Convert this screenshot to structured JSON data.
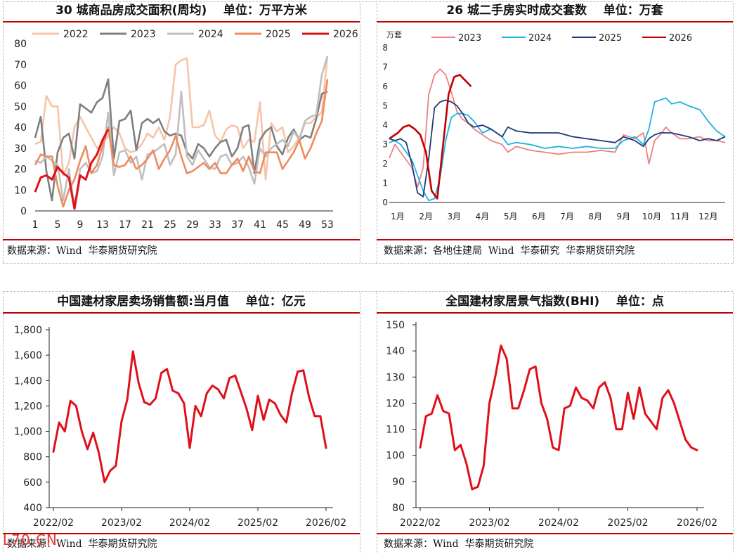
{
  "panels": [
    {
      "title": "30 城商品房成交面积(周均)    单位：万平方米",
      "source": "数据来源：Wind  华泰期货研究院"
    },
    {
      "title": "26 城二手房实时成交套数    单位：万套",
      "source": "数据来源：各地住建局  Wind  华泰研究  华泰期货研究院"
    },
    {
      "title": "中国建材家居卖场销售额:当月值    单位：亿元",
      "source": "数据来源：Wind  华泰期货研究院"
    },
    {
      "title": "全国建材家居景气指数(BHI)    单位：点",
      "source": "数据来源：Wind  华泰期货研究院"
    }
  ],
  "watermark": "L70.CN",
  "chart_data": [
    {
      "type": "line",
      "title": "30 城商品房成交面积(周均)",
      "unit": "万平方米",
      "xticks": [
        "1",
        "5",
        "9",
        "13",
        "17",
        "21",
        "25",
        "29",
        "33",
        "37",
        "41",
        "45",
        "49",
        "53"
      ],
      "ylim": [
        0,
        80
      ],
      "yticks": [
        0,
        10,
        20,
        30,
        40,
        50,
        60,
        70,
        80
      ],
      "legend_position": "top",
      "series": [
        {
          "name": "2022",
          "color": "#f7c4a8",
          "x": [
            1,
            2,
            3,
            4,
            5,
            6,
            7,
            8,
            9,
            10,
            11,
            12,
            13,
            14,
            15,
            16,
            17,
            18,
            19,
            20,
            21,
            22,
            23,
            24,
            25,
            26,
            27,
            28,
            29,
            30,
            31,
            32,
            33,
            34,
            35,
            36,
            37,
            38,
            39,
            40,
            41,
            42,
            43,
            44,
            45,
            46,
            47,
            48,
            49,
            50,
            51,
            52,
            53
          ],
          "y": [
            32,
            33,
            55,
            50,
            50,
            17,
            23,
            40,
            45,
            40,
            35,
            30,
            32,
            36,
            40,
            37,
            30,
            28,
            29,
            32,
            37,
            35,
            40,
            34,
            45,
            70,
            72,
            73,
            40,
            40,
            41,
            48,
            36,
            33,
            39,
            41,
            40,
            30,
            34,
            33,
            52,
            15,
            42,
            38,
            40,
            28,
            31,
            35,
            42,
            42,
            45,
            47,
            74
          ]
        },
        {
          "name": "2023",
          "color": "#7f7f7f",
          "x": [
            1,
            2,
            3,
            4,
            5,
            6,
            7,
            8,
            9,
            10,
            11,
            12,
            13,
            14,
            15,
            16,
            17,
            18,
            19,
            20,
            21,
            22,
            23,
            24,
            25,
            26,
            27,
            28,
            29,
            30,
            31,
            32,
            33,
            34,
            35,
            36,
            37,
            38,
            39,
            40,
            41,
            42,
            43,
            44,
            45,
            46,
            47,
            48,
            49,
            50,
            51,
            52,
            53
          ],
          "y": [
            35,
            45,
            19,
            5,
            28,
            35,
            37,
            25,
            51,
            49,
            47,
            52,
            54,
            63,
            25,
            43,
            44,
            48,
            29,
            42,
            44,
            42,
            44,
            38,
            36,
            37,
            36,
            28,
            25,
            32,
            30,
            26,
            30,
            33,
            34,
            26,
            30,
            40,
            41,
            18,
            34,
            38,
            40,
            31,
            27,
            35,
            39,
            34,
            36,
            35,
            44,
            56,
            57
          ]
        },
        {
          "name": "2024",
          "color": "#bfbfbf",
          "x": [
            1,
            2,
            3,
            4,
            5,
            6,
            7,
            8,
            9,
            10,
            11,
            12,
            13,
            14,
            15,
            16,
            17,
            18,
            19,
            20,
            21,
            22,
            23,
            24,
            25,
            26,
            27,
            28,
            29,
            30,
            31,
            32,
            33,
            34,
            35,
            36,
            37,
            38,
            39,
            40,
            41,
            42,
            43,
            44,
            45,
            46,
            47,
            48,
            49,
            50,
            51,
            52,
            53
          ],
          "y": [
            24,
            23,
            26,
            24,
            22,
            5,
            20,
            2,
            20,
            23,
            18,
            19,
            26,
            47,
            17,
            28,
            29,
            23,
            26,
            15,
            27,
            28,
            30,
            32,
            22,
            27,
            57,
            26,
            22,
            29,
            25,
            21,
            20,
            26,
            27,
            22,
            23,
            26,
            21,
            13,
            30,
            26,
            30,
            32,
            34,
            31,
            38,
            34,
            43,
            45,
            46,
            65,
            74
          ]
        },
        {
          "name": "2025",
          "color": "#f08a5d",
          "x": [
            1,
            2,
            3,
            4,
            5,
            6,
            7,
            8,
            9,
            10,
            11,
            12,
            13,
            14,
            15,
            16,
            17,
            18,
            19,
            20,
            21,
            22,
            23,
            24,
            25,
            26,
            27,
            28,
            29,
            30,
            31,
            32,
            33,
            34,
            35,
            36,
            37,
            38,
            39,
            40,
            41,
            42,
            43,
            44,
            45,
            46,
            47,
            48,
            49,
            50,
            51,
            52,
            53
          ],
          "y": [
            22,
            27,
            26,
            26,
            12,
            2,
            10,
            15,
            24,
            31,
            18,
            22,
            31,
            40,
            22,
            21,
            22,
            26,
            20,
            22,
            25,
            29,
            20,
            25,
            29,
            36,
            26,
            18,
            19,
            21,
            23,
            20,
            23,
            18,
            18,
            22,
            25,
            19,
            26,
            19,
            18,
            28,
            28,
            28,
            20,
            24,
            28,
            34,
            25,
            30,
            37,
            43,
            63
          ]
        },
        {
          "name": "2026",
          "color": "#e0101a",
          "x": [
            1,
            2,
            3,
            4,
            5,
            6,
            7,
            8,
            9,
            10,
            11,
            12,
            13,
            14
          ],
          "y": [
            9,
            16,
            17,
            15,
            21,
            18,
            16,
            1,
            17,
            15,
            23,
            27,
            34,
            39
          ]
        }
      ]
    },
    {
      "type": "line",
      "title": "26 城二手房实时成交套数",
      "unit": "万套",
      "ylabel": "万套",
      "xticks": [
        "1月",
        "2月",
        "3月",
        "4月",
        "5月",
        "6月",
        "7月",
        "8月",
        "9月",
        "10月",
        "11月",
        "12月"
      ],
      "ylim": [
        0,
        8
      ],
      "yticks": [
        0,
        1,
        2,
        3,
        4,
        5,
        6,
        7,
        8
      ],
      "legend_position": "top",
      "series": [
        {
          "name": "2023",
          "color": "#f08080",
          "x": [
            1.0,
            1.2,
            1.4,
            1.6,
            1.8,
            2.0,
            2.2,
            2.4,
            2.6,
            2.8,
            3.0,
            3.2,
            3.4,
            3.6,
            3.8,
            4.0,
            4.3,
            4.6,
            5.0,
            5.2,
            5.5,
            6.0,
            6.5,
            7.0,
            7.5,
            8.0,
            8.5,
            9.0,
            9.3,
            9.7,
            10.0,
            10.2,
            10.4,
            10.6,
            10.8,
            11.0,
            11.3,
            11.6,
            12.0,
            12.3,
            12.6,
            12.9
          ],
          "y": [
            2.3,
            3.0,
            2.6,
            2.2,
            1.8,
            0.8,
            1.8,
            5.6,
            6.6,
            6.9,
            6.6,
            5.7,
            4.7,
            4.3,
            4.1,
            3.8,
            3.5,
            3.2,
            3.0,
            2.6,
            2.9,
            2.7,
            2.6,
            2.5,
            2.6,
            2.6,
            2.7,
            2.6,
            3.5,
            3.3,
            3.6,
            2.0,
            3.2,
            3.5,
            3.9,
            3.6,
            3.3,
            3.3,
            3.4,
            3.2,
            3.2,
            3.1
          ]
        },
        {
          "name": "2024",
          "color": "#1ab3e6",
          "x": [
            1.0,
            1.2,
            1.4,
            1.6,
            1.8,
            2.0,
            2.2,
            2.4,
            2.6,
            2.8,
            3.0,
            3.2,
            3.4,
            3.6,
            3.8,
            4.0,
            4.3,
            4.6,
            5.0,
            5.2,
            5.5,
            6.0,
            6.5,
            7.0,
            7.5,
            8.0,
            8.5,
            9.0,
            9.3,
            9.7,
            10.0,
            10.2,
            10.4,
            10.6,
            10.8,
            11.0,
            11.3,
            11.6,
            12.0,
            12.3,
            12.6,
            12.9
          ],
          "y": [
            3.1,
            3.2,
            3.0,
            2.6,
            2.2,
            1.4,
            0.6,
            0.1,
            0.2,
            1.3,
            3.2,
            4.4,
            4.6,
            4.6,
            4.5,
            4.2,
            3.6,
            3.8,
            3.4,
            3.0,
            3.1,
            3.0,
            2.8,
            2.9,
            2.8,
            2.9,
            2.8,
            2.8,
            3.2,
            3.4,
            3.0,
            3.8,
            5.2,
            5.3,
            5.4,
            5.1,
            5.2,
            5.0,
            4.8,
            4.2,
            3.7,
            3.4
          ]
        },
        {
          "name": "2025",
          "color": "#1f3a7a",
          "x": [
            1.0,
            1.2,
            1.4,
            1.6,
            1.8,
            2.0,
            2.2,
            2.4,
            2.6,
            2.8,
            3.0,
            3.2,
            3.4,
            3.6,
            3.8,
            4.0,
            4.3,
            4.6,
            5.0,
            5.2,
            5.5,
            6.0,
            6.5,
            7.0,
            7.5,
            8.0,
            8.5,
            9.0,
            9.3,
            9.7,
            10.0,
            10.2,
            10.4,
            10.6,
            10.8,
            11.0,
            11.3,
            11.6,
            12.0,
            12.3,
            12.6,
            12.9
          ],
          "y": [
            3.3,
            3.2,
            3.3,
            3.1,
            2.0,
            0.5,
            0.3,
            2.3,
            4.9,
            5.2,
            5.3,
            5.2,
            5.0,
            4.6,
            4.1,
            3.9,
            4.0,
            3.8,
            3.4,
            3.9,
            3.7,
            3.6,
            3.6,
            3.6,
            3.4,
            3.3,
            3.2,
            3.1,
            3.4,
            3.2,
            2.9,
            3.3,
            3.5,
            3.6,
            3.6,
            3.6,
            3.5,
            3.4,
            3.2,
            3.3,
            3.2,
            3.4
          ]
        },
        {
          "name": "2026",
          "color": "#c00000",
          "x": [
            1.0,
            1.1,
            1.3,
            1.5,
            1.7,
            1.9,
            2.1,
            2.3,
            2.5,
            2.7,
            2.9,
            3.1,
            3.3,
            3.5,
            3.7,
            3.9
          ],
          "y": [
            3.3,
            3.4,
            3.6,
            3.9,
            4.0,
            3.8,
            3.5,
            2.6,
            0.6,
            0.2,
            2.9,
            5.6,
            6.5,
            6.6,
            6.3,
            6.0
          ]
        }
      ]
    },
    {
      "type": "line",
      "title": "中国建材家居卖场销售额:当月值",
      "unit": "亿元",
      "xticks": [
        "2022/02",
        "2023/02",
        "2024/02",
        "2025/02",
        "2026/02"
      ],
      "ylim": [
        400,
        1800
      ],
      "yticks": [
        400,
        600,
        800,
        1000,
        1200,
        1400,
        1600,
        1800
      ],
      "series": [
        {
          "name": "",
          "color": "#e0101a",
          "x": [
            0,
            1,
            2,
            3,
            4,
            5,
            6,
            7,
            8,
            9,
            10,
            11,
            12,
            13,
            14,
            15,
            16,
            17,
            18,
            19,
            20,
            21,
            22,
            23,
            24,
            25,
            26,
            27,
            28,
            29,
            30,
            31,
            32,
            33,
            34,
            35,
            36,
            37,
            38,
            39,
            40,
            41,
            42,
            43,
            44,
            45,
            46,
            47,
            48
          ],
          "y": [
            840,
            1070,
            1000,
            1240,
            1200,
            1000,
            860,
            990,
            830,
            600,
            690,
            730,
            1080,
            1250,
            1630,
            1380,
            1230,
            1210,
            1260,
            1460,
            1490,
            1320,
            1300,
            1220,
            870,
            1200,
            1120,
            1300,
            1360,
            1330,
            1260,
            1420,
            1440,
            1310,
            1180,
            1010,
            1280,
            1090,
            1250,
            1220,
            1130,
            1070,
            1300,
            1470,
            1480,
            1270,
            1120,
            1120,
            870
          ]
        }
      ]
    },
    {
      "type": "line",
      "title": "全国建材家居景气指数(BHI)",
      "unit": "点",
      "xticks": [
        "2022/02",
        "2023/02",
        "2024/02",
        "2025/02",
        "2026/02"
      ],
      "ylim": [
        80,
        150
      ],
      "yticks": [
        80,
        90,
        100,
        110,
        120,
        130,
        140,
        150
      ],
      "series": [
        {
          "name": "",
          "color": "#e0101a",
          "x": [
            0,
            1,
            2,
            3,
            4,
            5,
            6,
            7,
            8,
            9,
            10,
            11,
            12,
            13,
            14,
            15,
            16,
            17,
            18,
            19,
            20,
            21,
            22,
            23,
            24,
            25,
            26,
            27,
            28,
            29,
            30,
            31,
            32,
            33,
            34,
            35,
            36,
            37,
            38,
            39,
            40,
            41,
            42,
            43,
            44,
            45,
            46,
            47,
            48
          ],
          "y": [
            103,
            115,
            116,
            123,
            117,
            116,
            102,
            104,
            97,
            87,
            88,
            96,
            120,
            130,
            142,
            137,
            118,
            118,
            125,
            133,
            134,
            120,
            114,
            103,
            102,
            118,
            119,
            126,
            122,
            121,
            118,
            126,
            128,
            122,
            110,
            110,
            124,
            114,
            126,
            116,
            113,
            110,
            122,
            125,
            120,
            113,
            106,
            103,
            102
          ]
        }
      ]
    }
  ]
}
